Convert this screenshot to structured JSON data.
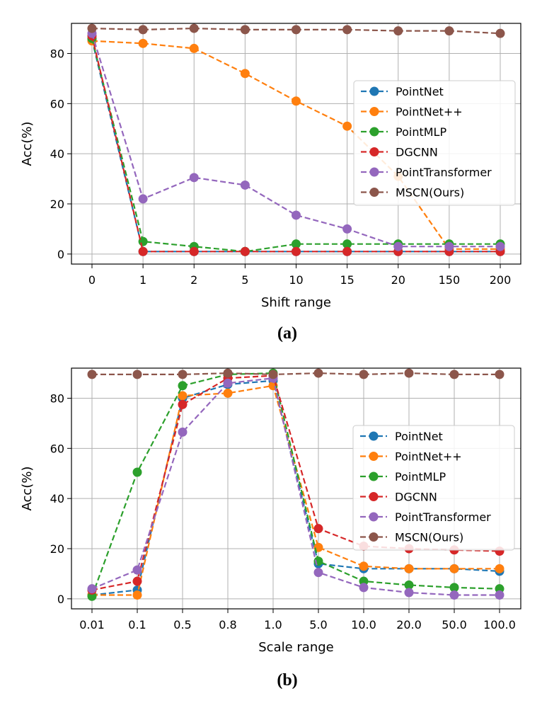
{
  "chart_data": [
    {
      "type": "line",
      "caption": "(a)",
      "xlabel": "Shift range",
      "ylabel": "Acc(%)",
      "categories": [
        "0",
        "1",
        "2",
        "5",
        "10",
        "15",
        "20",
        "150",
        "200"
      ],
      "ylim": [
        -4,
        92
      ],
      "yticks": [
        0,
        20,
        40,
        60,
        80
      ],
      "grid": true,
      "legend_position": "center-right",
      "series": [
        {
          "name": "PointNet",
          "color": "#1f77b4",
          "values": [
            85.5,
            1.0,
            1.0,
            1.0,
            1.0,
            1.0,
            1.0,
            1.0,
            1.0
          ]
        },
        {
          "name": "PointNet++",
          "color": "#ff7f0e",
          "values": [
            85.0,
            84.0,
            82.0,
            72.0,
            61.0,
            51.0,
            31.0,
            2.0,
            2.0
          ]
        },
        {
          "name": "PointMLP",
          "color": "#2ca02c",
          "values": [
            86.0,
            5.0,
            3.0,
            1.0,
            4.0,
            4.0,
            4.0,
            4.0,
            4.0
          ]
        },
        {
          "name": "DGCNN",
          "color": "#d62728",
          "values": [
            87.0,
            1.0,
            1.0,
            1.0,
            1.0,
            1.0,
            1.0,
            1.0,
            1.0
          ]
        },
        {
          "name": "PointTransformer",
          "color": "#9467bd",
          "values": [
            88.0,
            22.0,
            30.5,
            27.5,
            15.5,
            10.0,
            3.0,
            3.0,
            3.0
          ]
        },
        {
          "name": "MSCN(Ours)",
          "color": "#8c564b",
          "values": [
            90.0,
            89.5,
            90.0,
            89.5,
            89.5,
            89.5,
            89.0,
            89.0,
            88.0
          ]
        }
      ]
    },
    {
      "type": "line",
      "caption": "(b)",
      "xlabel": "Scale range",
      "ylabel": "Acc(%)",
      "categories": [
        "0.01",
        "0.1",
        "0.5",
        "0.8",
        "1.0",
        "5.0",
        "10.0",
        "20.0",
        "50.0",
        "100.0"
      ],
      "ylim": [
        -4,
        92
      ],
      "yticks": [
        0,
        20,
        40,
        60,
        80
      ],
      "grid": true,
      "legend_position": "center-right",
      "series": [
        {
          "name": "PointNet",
          "color": "#1f77b4",
          "values": [
            1.5,
            3.5,
            80.0,
            85.5,
            87.0,
            14.0,
            12.0,
            12.0,
            12.0,
            11.0
          ]
        },
        {
          "name": "PointNet++",
          "color": "#ff7f0e",
          "values": [
            1.5,
            1.5,
            81.0,
            82.0,
            85.0,
            20.5,
            13.0,
            12.0,
            12.0,
            12.0
          ]
        },
        {
          "name": "PointMLP",
          "color": "#2ca02c",
          "values": [
            1.0,
            50.5,
            85.0,
            89.5,
            90.0,
            15.0,
            7.0,
            5.5,
            4.5,
            4.0
          ]
        },
        {
          "name": "DGCNN",
          "color": "#d62728",
          "values": [
            3.5,
            7.0,
            77.5,
            88.0,
            89.0,
            28.0,
            21.0,
            20.0,
            19.5,
            19.0
          ]
        },
        {
          "name": "PointTransformer",
          "color": "#9467bd",
          "values": [
            4.0,
            11.5,
            66.5,
            86.0,
            88.0,
            10.5,
            4.5,
            2.5,
            1.5,
            1.5
          ]
        },
        {
          "name": "MSCN(Ours)",
          "color": "#8c564b",
          "values": [
            89.5,
            89.5,
            89.5,
            90.0,
            89.5,
            90.0,
            89.5,
            90.0,
            89.5,
            89.5
          ]
        }
      ]
    }
  ]
}
